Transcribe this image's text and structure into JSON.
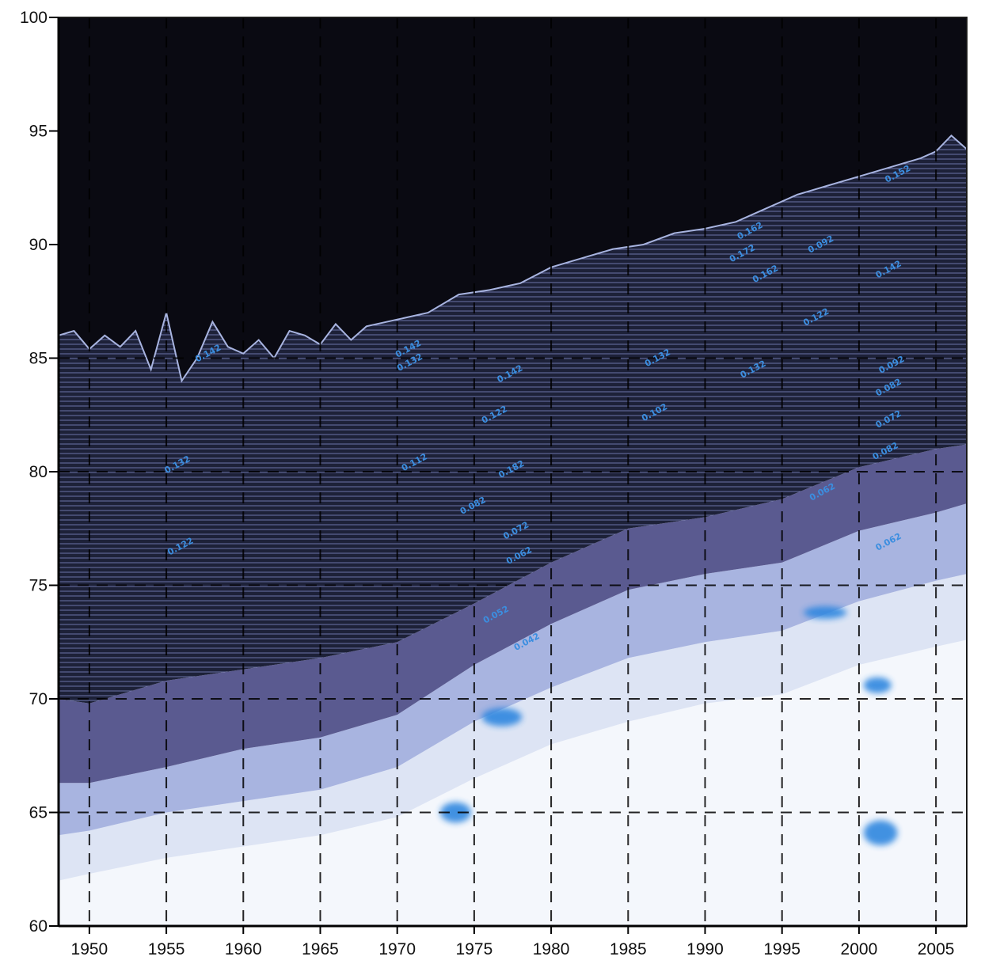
{
  "chart_data": {
    "type": "heatmap",
    "title": "",
    "xlabel": "",
    "ylabel": "",
    "xlim": [
      1948,
      2007
    ],
    "ylim": [
      60,
      100
    ],
    "x_ticks": [
      "1950",
      "1955",
      "1960",
      "1965",
      "1970",
      "1975",
      "1980",
      "1985",
      "1990",
      "1995",
      "2000",
      "2005"
    ],
    "y_ticks": [
      "60",
      "65",
      "70",
      "75",
      "80",
      "85",
      "90",
      "95",
      "100"
    ],
    "x_tick_values": [
      1950,
      1955,
      1960,
      1965,
      1970,
      1975,
      1980,
      1985,
      1990,
      1995,
      2000,
      2005
    ],
    "y_tick_values": [
      60,
      65,
      70,
      75,
      80,
      85,
      90,
      95,
      100
    ],
    "grid_x": [
      1950,
      1955,
      1960,
      1965,
      1970,
      1975,
      1980,
      1985,
      1990,
      1995,
      2000,
      2005
    ],
    "grid_y": [
      65,
      70,
      75,
      80,
      85
    ],
    "grid": true,
    "legend": "none",
    "colors": {
      "background_dark": "#0a0a12",
      "contour_dark": "#181c32",
      "contour_mid": "#3c4070",
      "band_purple": "#5a5a90",
      "band_light": "#a8b4e0",
      "band_lightest": "#dde4f4",
      "low_region": "#f4f7fc",
      "contour_label": "#3b8ee0",
      "blob": "#2f86df"
    },
    "surface_top": {
      "x": [
        1948,
        1949,
        1950,
        1951,
        1952,
        1953,
        1954,
        1955,
        1956,
        1957,
        1958,
        1959,
        1960,
        1961,
        1962,
        1963,
        1964,
        1965,
        1966,
        1967,
        1968,
        1970,
        1972,
        1974,
        1976,
        1978,
        1980,
        1982,
        1984,
        1986,
        1988,
        1990,
        1992,
        1994,
        1996,
        1998,
        2000,
        2002,
        2004,
        2005,
        2006,
        2007
      ],
      "y": [
        86.0,
        86.2,
        85.4,
        86.0,
        85.5,
        86.2,
        84.5,
        87.0,
        84.0,
        85.0,
        86.6,
        85.5,
        85.2,
        85.8,
        85.0,
        86.2,
        86.0,
        85.6,
        86.5,
        85.8,
        86.4,
        86.7,
        87.0,
        87.8,
        88.0,
        88.3,
        89.0,
        89.4,
        89.8,
        90.0,
        90.5,
        90.7,
        91.0,
        91.6,
        92.2,
        92.6,
        93.0,
        93.4,
        93.8,
        94.1,
        94.8,
        94.2
      ]
    },
    "band_boundaries": {
      "x": [
        1948,
        1950,
        1955,
        1960,
        1965,
        1970,
        1975,
        1980,
        1985,
        1990,
        1995,
        2000,
        2005,
        2007
      ],
      "dark_bottom": [
        70.0,
        69.8,
        70.8,
        71.3,
        71.8,
        72.5,
        74.2,
        76.0,
        77.5,
        78.0,
        78.8,
        80.2,
        81.0,
        81.2
      ],
      "purple_bottom": [
        66.3,
        66.3,
        67.0,
        67.8,
        68.3,
        69.3,
        71.5,
        73.3,
        74.8,
        75.5,
        76.0,
        77.4,
        78.2,
        78.6
      ],
      "light_bottom": [
        64.0,
        64.2,
        65.0,
        65.5,
        66.0,
        67.0,
        69.0,
        70.5,
        71.8,
        72.5,
        73.0,
        74.3,
        75.2,
        75.5
      ],
      "lightest_bottom": [
        62.0,
        62.3,
        63.0,
        63.5,
        64.0,
        64.8,
        66.5,
        68.0,
        69.0,
        69.8,
        70.2,
        71.5,
        72.3,
        72.6
      ]
    },
    "annotations": [
      {
        "text": "0.142",
        "x": 1970.8,
        "y": 85.3
      },
      {
        "text": "0.132",
        "x": 1970.9,
        "y": 84.7
      },
      {
        "text": "0.142",
        "x": 1977.4,
        "y": 84.2
      },
      {
        "text": "0.122",
        "x": 1976.4,
        "y": 82.4
      },
      {
        "text": "0.182",
        "x": 1977.5,
        "y": 80.0
      },
      {
        "text": "0.112",
        "x": 1971.2,
        "y": 80.3
      },
      {
        "text": "0.082",
        "x": 1975.0,
        "y": 78.4
      },
      {
        "text": "0.072",
        "x": 1977.8,
        "y": 77.3
      },
      {
        "text": "0.062",
        "x": 1978.0,
        "y": 76.2
      },
      {
        "text": "0.052",
        "x": 1976.5,
        "y": 73.6
      },
      {
        "text": "0.042",
        "x": 1978.5,
        "y": 72.4
      },
      {
        "text": "0.132",
        "x": 1987.0,
        "y": 84.9
      },
      {
        "text": "0.102",
        "x": 1986.8,
        "y": 82.5
      },
      {
        "text": "0.132",
        "x": 1993.2,
        "y": 84.4
      },
      {
        "text": "0.162",
        "x": 1993.0,
        "y": 90.5
      },
      {
        "text": "0.172",
        "x": 1992.5,
        "y": 89.5
      },
      {
        "text": "0.162",
        "x": 1994.0,
        "y": 88.6
      },
      {
        "text": "0.092",
        "x": 1997.6,
        "y": 89.9
      },
      {
        "text": "0.122",
        "x": 1997.3,
        "y": 86.7
      },
      {
        "text": "0.142",
        "x": 2002.0,
        "y": 88.8
      },
      {
        "text": "0.152",
        "x": 2002.6,
        "y": 93.0
      },
      {
        "text": "0.092",
        "x": 2002.2,
        "y": 84.6
      },
      {
        "text": "0.082",
        "x": 2002.0,
        "y": 83.6
      },
      {
        "text": "0.072",
        "x": 2002.0,
        "y": 82.2
      },
      {
        "text": "0.082",
        "x": 2001.8,
        "y": 80.8
      },
      {
        "text": "0.062",
        "x": 1997.7,
        "y": 79.0
      },
      {
        "text": "0.062",
        "x": 2002.0,
        "y": 76.8
      },
      {
        "text": "0.132",
        "x": 1955.8,
        "y": 80.2
      },
      {
        "text": "0.122",
        "x": 1956.0,
        "y": 76.6
      },
      {
        "text": "0.142",
        "x": 1957.8,
        "y": 85.1
      }
    ],
    "blobs": [
      {
        "x": 1973.8,
        "y": 65.0,
        "w": 2.0,
        "h": 0.9
      },
      {
        "x": 1976.8,
        "y": 69.2,
        "w": 2.6,
        "h": 0.8
      },
      {
        "x": 1997.8,
        "y": 73.8,
        "w": 2.8,
        "h": 0.55
      },
      {
        "x": 2001.2,
        "y": 70.6,
        "w": 1.8,
        "h": 0.7
      },
      {
        "x": 2001.4,
        "y": 64.1,
        "w": 2.2,
        "h": 1.1
      }
    ]
  }
}
